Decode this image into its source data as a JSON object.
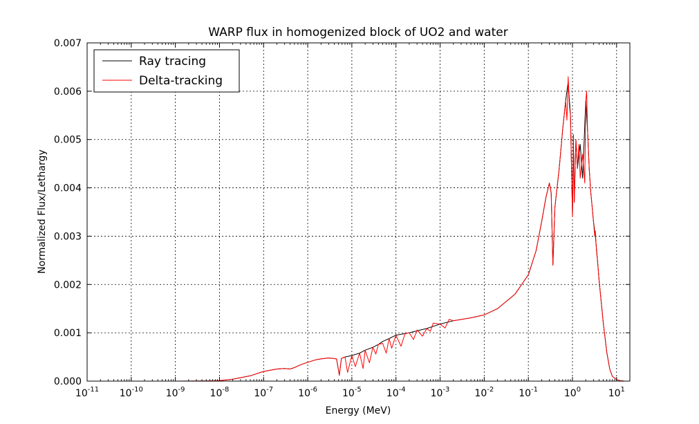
{
  "chart_data": {
    "type": "line",
    "title": "WARP flux in homogenized block of UO2 and water",
    "xlabel": "Energy (MeV)",
    "ylabel": "Normalized Flux/Lethargy",
    "x_scale": "log",
    "xlim": [
      1e-11,
      20
    ],
    "ylim": [
      0,
      0.007
    ],
    "grid": true,
    "legend_position": "top-left",
    "x_ticks": [
      {
        "base": "10",
        "exp": "-11",
        "value": 1e-11
      },
      {
        "base": "10",
        "exp": "-10",
        "value": 1e-10
      },
      {
        "base": "10",
        "exp": "-9",
        "value": 1e-09
      },
      {
        "base": "10",
        "exp": "-8",
        "value": 1e-08
      },
      {
        "base": "10",
        "exp": "-7",
        "value": 1e-07
      },
      {
        "base": "10",
        "exp": "-6",
        "value": 1e-06
      },
      {
        "base": "10",
        "exp": "-5",
        "value": 1e-05
      },
      {
        "base": "10",
        "exp": "-4",
        "value": 0.0001
      },
      {
        "base": "10",
        "exp": "-3",
        "value": 0.001
      },
      {
        "base": "10",
        "exp": "-2",
        "value": 0.01
      },
      {
        "base": "10",
        "exp": "-1",
        "value": 0.1
      },
      {
        "base": "10",
        "exp": "0",
        "value": 1
      },
      {
        "base": "10",
        "exp": "1",
        "value": 10
      }
    ],
    "y_ticks": [
      "0.000",
      "0.001",
      "0.002",
      "0.003",
      "0.004",
      "0.005",
      "0.006",
      "0.007"
    ],
    "y_tick_values": [
      0,
      0.001,
      0.002,
      0.003,
      0.004,
      0.005,
      0.006,
      0.007
    ],
    "series": [
      {
        "name": "Ray tracing",
        "color": "#000000",
        "x": [
          1e-11,
          1e-10,
          1e-09,
          5e-09,
          1e-08,
          2e-08,
          5e-08,
          1e-07,
          2e-07,
          3e-07,
          4e-07,
          5e-07,
          7e-07,
          1e-06,
          1.5e-06,
          2e-06,
          3e-06,
          4.5e-06,
          5.2e-06,
          5.8e-06,
          7e-06,
          1e-05,
          1.5e-05,
          2e-05,
          3e-05,
          4e-05,
          5e-05,
          7e-05,
          0.0001,
          0.0002,
          0.0005,
          0.001,
          0.002,
          0.005,
          0.01,
          0.02,
          0.05,
          0.1,
          0.15,
          0.2,
          0.25,
          0.3,
          0.33,
          0.36,
          0.4,
          0.5,
          0.6,
          0.7,
          0.8,
          0.9,
          1.0,
          1.05,
          1.1,
          1.2,
          1.3,
          1.5,
          1.7,
          2.0,
          2.2,
          2.4,
          2.6,
          2.8,
          3.0,
          3.3,
          3.7,
          4.0,
          5.0,
          6.0,
          7.0,
          8.0,
          10,
          12,
          15,
          18,
          20
        ],
        "y": [
          0,
          0,
          0,
          5e-06,
          1e-05,
          4e-05,
          0.00011,
          0.0002,
          0.00025,
          0.00026,
          0.00025,
          0.00028,
          0.00034,
          0.00039,
          0.00044,
          0.00046,
          0.00048,
          0.00046,
          0.00012,
          0.00047,
          0.0005,
          0.00053,
          0.00058,
          0.00064,
          0.0007,
          0.00076,
          0.00082,
          0.00088,
          0.00095,
          0.001,
          0.00109,
          0.00118,
          0.00125,
          0.00131,
          0.00137,
          0.0015,
          0.0018,
          0.0022,
          0.0027,
          0.0033,
          0.0038,
          0.0041,
          0.0039,
          0.0024,
          0.0036,
          0.0044,
          0.0052,
          0.0058,
          0.0062,
          0.0055,
          0.0034,
          0.0051,
          0.0037,
          0.005,
          0.0044,
          0.0049,
          0.0042,
          0.0058,
          0.0052,
          0.0044,
          0.0039,
          0.0036,
          0.0033,
          0.003,
          0.0025,
          0.0021,
          0.0012,
          0.0006,
          0.00025,
          0.0001,
          3e-05,
          1e-05,
          0,
          0,
          0
        ]
      },
      {
        "name": "Delta-tracking",
        "color": "#ff0000",
        "x": [
          1e-11,
          1e-10,
          1e-09,
          5e-09,
          1e-08,
          2e-08,
          5e-08,
          1e-07,
          2e-07,
          3e-07,
          4e-07,
          5e-07,
          7e-07,
          1e-06,
          1.5e-06,
          2e-06,
          3e-06,
          4.5e-06,
          5.2e-06,
          5.8e-06,
          7e-06,
          8e-06,
          1e-05,
          1.2e-05,
          1.5e-05,
          1.8e-05,
          2e-05,
          2.5e-05,
          3e-05,
          3.5e-05,
          4e-05,
          5e-05,
          6e-05,
          7e-05,
          8e-05,
          0.0001,
          0.00013,
          0.00016,
          0.0002,
          0.00025,
          0.0003,
          0.0004,
          0.0005,
          0.0006,
          0.0007,
          0.001,
          0.0013,
          0.0016,
          0.002,
          0.005,
          0.01,
          0.02,
          0.05,
          0.1,
          0.15,
          0.2,
          0.25,
          0.3,
          0.33,
          0.36,
          0.4,
          0.5,
          0.6,
          0.7,
          0.75,
          0.8,
          0.85,
          0.9,
          1.0,
          1.05,
          1.1,
          1.2,
          1.3,
          1.4,
          1.5,
          1.7,
          1.9,
          2.0,
          2.1,
          2.2,
          2.4,
          2.6,
          2.8,
          3.0,
          3.2,
          3.3,
          3.5,
          3.7,
          4.0,
          5.0,
          6.0,
          7.0,
          8.0,
          10,
          12,
          15,
          18,
          20
        ],
        "y": [
          0,
          0,
          0,
          5e-06,
          1e-05,
          4e-05,
          0.00011,
          0.0002,
          0.00025,
          0.00026,
          0.00025,
          0.00028,
          0.00034,
          0.00039,
          0.00044,
          0.00046,
          0.00048,
          0.00046,
          0.00012,
          0.00047,
          0.0005,
          0.00018,
          0.00053,
          0.0003,
          0.00058,
          0.00026,
          0.00064,
          0.00038,
          0.0007,
          0.00056,
          0.00076,
          0.00078,
          0.00058,
          0.00088,
          0.00068,
          0.00095,
          0.00072,
          0.00098,
          0.001,
          0.00086,
          0.00106,
          0.00093,
          0.00109,
          0.00103,
          0.0012,
          0.00118,
          0.0011,
          0.00128,
          0.00125,
          0.00131,
          0.00137,
          0.0015,
          0.0018,
          0.0022,
          0.0027,
          0.0033,
          0.0038,
          0.0041,
          0.0039,
          0.0024,
          0.0036,
          0.0044,
          0.0052,
          0.0058,
          0.0054,
          0.0063,
          0.0057,
          0.0055,
          0.0034,
          0.0051,
          0.0037,
          0.005,
          0.0044,
          0.0049,
          0.0042,
          0.0047,
          0.0041,
          0.0058,
          0.006,
          0.0052,
          0.0044,
          0.0039,
          0.0036,
          0.0033,
          0.003,
          0.0031,
          0.0027,
          0.0025,
          0.0021,
          0.0012,
          0.0006,
          0.00025,
          0.0001,
          3e-05,
          1e-05,
          0,
          0,
          0
        ]
      }
    ]
  }
}
